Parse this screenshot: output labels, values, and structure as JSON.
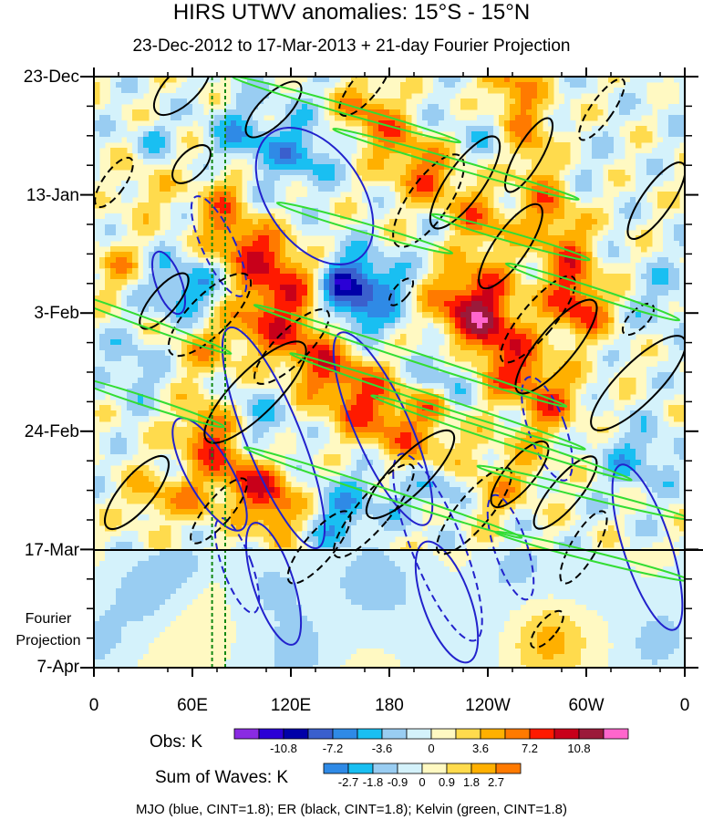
{
  "chart_data": {
    "type": "heatmap",
    "title": "HIRS UTWV anomalies: 15°S - 15°N",
    "subtitle": "23-Dec-2012 to 17-Mar-2013 + 21-day Fourier Projection",
    "x_tick_labels": [
      "0",
      "60E",
      "120E",
      "180",
      "120W",
      "60W",
      "0"
    ],
    "x_range_deg_east": [
      0,
      360
    ],
    "y_tick_labels": [
      "23-Dec",
      "13-Jan",
      "3-Feb",
      "24-Feb",
      "17-Mar",
      "7-Apr"
    ],
    "y_range_dates": [
      "2012-12-23",
      "2013-04-07"
    ],
    "observation_end": "17-Mar",
    "projection_label": [
      "Fourier",
      "Projection"
    ],
    "reference_longitudes_deg_east": [
      72,
      80
    ],
    "obs_colorbar": {
      "label": "Obs: K",
      "tick_labels": [
        "-10.8",
        "-7.2",
        "-3.6",
        "0",
        "3.6",
        "7.2",
        "10.8"
      ],
      "colors": [
        "#8a2be2",
        "#2b00d6",
        "#0000a8",
        "#3a5fcd",
        "#2f8ae6",
        "#19bff2",
        "#99cdf2",
        "#d4f2fb",
        "#fff9c2",
        "#ffdb4d",
        "#ffb000",
        "#ff7a00",
        "#ff1a00",
        "#c8001a",
        "#9b1a3a",
        "#ff66cc"
      ]
    },
    "waves_colorbar": {
      "label": "Sum of Waves: K",
      "tick_labels": [
        "-2.7",
        "-1.8",
        "-0.9",
        "0",
        "0.9",
        "1.8",
        "2.7"
      ],
      "colors": [
        "#2f8ae6",
        "#19bff2",
        "#99cdf2",
        "#d4f2fb",
        "#fff9c2",
        "#ffdb4d",
        "#ffb000",
        "#ff7a00"
      ]
    },
    "contours": [
      {
        "name": "MJO",
        "color": "blue",
        "cint": 1.8
      },
      {
        "name": "ER",
        "color": "black",
        "cint": 1.8
      },
      {
        "name": "Kelvin",
        "color": "green",
        "cint": 1.8
      }
    ],
    "footnote": "MJO (blue, CINT=1.8); ER (black, CINT=1.8); Kelvin (green, CINT=1.8)"
  }
}
